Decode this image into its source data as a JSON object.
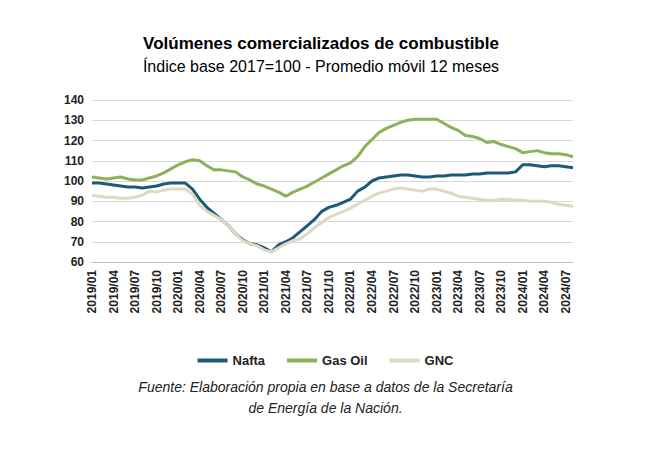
{
  "chart_data": {
    "type": "line",
    "title": "Volúmenes comercializados de combustible",
    "subtitle": "Índice base 2017=100 - Promedio móvil 12 meses",
    "note": "Fuente: Elaboración propia en base a datos de la Secretaría\nde Energía de la Nación.",
    "categories": [
      "2019/01",
      null,
      null,
      "2019/04",
      null,
      null,
      "2019/07",
      null,
      null,
      "2019/10",
      null,
      null,
      "2020/01",
      null,
      null,
      "2020/04",
      null,
      null,
      "2020/07",
      null,
      null,
      "2020/10",
      null,
      null,
      "2021/01",
      null,
      null,
      "2021/04",
      null,
      null,
      "2021/07",
      null,
      null,
      "2021/10",
      null,
      null,
      "2022/01",
      null,
      null,
      "2022/04",
      null,
      null,
      "2022/07",
      null,
      null,
      "2022/10",
      null,
      null,
      "2023/01",
      null,
      null,
      "2023/04",
      null,
      null,
      "2023/07",
      null,
      null,
      "2023/10",
      null,
      null,
      "2024/01",
      null,
      null,
      "2024/04",
      null,
      null,
      "2024/07",
      null
    ],
    "series": [
      {
        "name": "Nafta",
        "color": "#1d5a7a",
        "values": [
          99,
          99,
          98.5,
          98,
          97.5,
          97,
          97,
          96.5,
          97,
          97.5,
          98.5,
          99,
          99,
          99,
          96,
          91,
          87,
          84,
          81,
          78,
          74,
          71,
          69,
          68.5,
          67,
          65,
          68.5,
          70,
          72,
          75,
          78,
          81,
          85,
          87,
          88,
          89.5,
          91,
          95,
          97,
          100,
          101.5,
          102,
          102.5,
          103,
          103,
          102.5,
          102,
          102,
          102.5,
          102.5,
          103,
          103,
          103,
          103.5,
          103.5,
          104,
          104,
          104,
          104,
          104.5,
          108,
          108,
          107.5,
          107,
          107.5,
          107.5,
          107,
          106.5
        ]
      },
      {
        "name": "Gas Oil",
        "color": "#8db158",
        "values": [
          102,
          101.5,
          101,
          101.5,
          102,
          101,
          100.5,
          100.5,
          101.5,
          102.5,
          104,
          106,
          108,
          109.5,
          110.5,
          110,
          107.5,
          105.5,
          105.5,
          105,
          104.5,
          102,
          100.5,
          98.5,
          97.5,
          96,
          94.5,
          92.5,
          94.5,
          96,
          97.5,
          99.5,
          101.5,
          103.5,
          105.5,
          107.5,
          109,
          112,
          117,
          120.5,
          124,
          126,
          127.5,
          129,
          130,
          130.5,
          130.5,
          130.5,
          130.5,
          128.5,
          126.5,
          125,
          122.5,
          122,
          121,
          119,
          119.5,
          118,
          117,
          116,
          114,
          114.5,
          115,
          114,
          113.5,
          113.5,
          113,
          112
        ]
      },
      {
        "name": "GNC",
        "color": "#ddd9c3",
        "values": [
          93,
          92.5,
          92,
          92,
          91.5,
          91.5,
          92,
          93,
          95,
          94.5,
          95.5,
          96,
          96,
          96,
          93.5,
          88,
          85,
          83,
          81,
          78,
          74,
          70.5,
          69,
          68,
          66,
          65,
          67,
          69,
          70.5,
          71.5,
          74,
          77,
          79.5,
          82,
          83.5,
          85,
          86.5,
          88.5,
          90.5,
          92.5,
          94,
          95,
          96,
          96.5,
          96,
          95.5,
          95,
          96,
          96,
          95,
          94,
          92.5,
          92,
          91.5,
          91,
          90.5,
          90.5,
          91,
          91,
          90.5,
          90.5,
          90,
          90,
          90,
          89.5,
          88.5,
          88,
          87.5
        ]
      }
    ],
    "ylim": [
      60,
      140
    ],
    "yticks": [
      60,
      70,
      80,
      90,
      100,
      110,
      120,
      130,
      140
    ],
    "grid": true,
    "legend": "bottom"
  }
}
